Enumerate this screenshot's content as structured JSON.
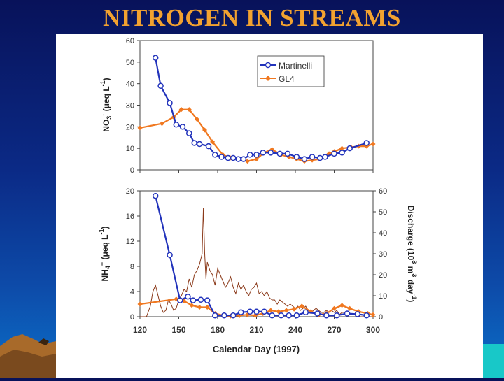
{
  "title": "NITROGEN IN STREAMS",
  "colors": {
    "martinelli": "#2233bb",
    "gl4": "#f07820",
    "discharge": "#8b3a1a",
    "title": "#f2a230"
  },
  "chart_data": [
    {
      "type": "line",
      "ylabel": "NO3- (μeq L-1)",
      "xlim": [
        120,
        300
      ],
      "ylim": [
        0,
        60
      ],
      "yticks": [
        "0",
        "10",
        "20",
        "30",
        "40",
        "50",
        "60"
      ],
      "legend": "top-right",
      "series": [
        {
          "name": "Martinelli",
          "x": [
            132,
            136,
            143,
            148,
            153,
            158,
            162,
            166,
            173,
            178,
            183,
            188,
            192,
            196,
            200,
            205,
            210,
            215,
            221,
            228,
            234,
            241,
            247,
            253,
            259,
            263,
            270,
            276,
            282,
            295
          ],
          "y": [
            52,
            39,
            31,
            21,
            20,
            17,
            12.5,
            12,
            11,
            7,
            6,
            5.5,
            5.5,
            5,
            5,
            7,
            7,
            8,
            8,
            7.5,
            7.5,
            6,
            5,
            6,
            5.5,
            6,
            7.5,
            8,
            10,
            12.5
          ]
        },
        {
          "name": "GL4",
          "x": [
            120,
            137,
            146,
            152,
            158,
            164,
            170,
            176,
            184,
            190,
            196,
            203,
            210,
            216,
            222,
            229,
            235,
            241,
            247,
            253,
            259,
            266,
            270,
            276,
            283,
            289,
            295,
            300
          ],
          "y": [
            19.5,
            21.5,
            24.5,
            28,
            28,
            23.5,
            18.5,
            13,
            7,
            5.5,
            5,
            4,
            5,
            8,
            9.5,
            7,
            6,
            5,
            4,
            4.5,
            5,
            7.5,
            8.5,
            10,
            10.5,
            11,
            11,
            12
          ]
        }
      ]
    },
    {
      "type": "line",
      "xlabel": "Calendar Day (1997)",
      "ylabel": "NH4+ (μeq L-1)",
      "y2label": "Discharge (10^3 m^3 day-1)",
      "xlim": [
        120,
        300
      ],
      "ylim": [
        0,
        20
      ],
      "y2lim": [
        0,
        60
      ],
      "xticks": [
        "120",
        "150",
        "180",
        "210",
        "240",
        "270",
        "300"
      ],
      "yticks": [
        "0",
        "4",
        "8",
        "12",
        "16",
        "20"
      ],
      "y2ticks": [
        "0",
        "10",
        "20",
        "30",
        "40",
        "50",
        "60"
      ],
      "series": [
        {
          "name": "Martinelli",
          "x": [
            132,
            143,
            151,
            157,
            161,
            167,
            172,
            178,
            185,
            192,
            198,
            205,
            210,
            216,
            222,
            229,
            235,
            241,
            248,
            257,
            264,
            272,
            280,
            288,
            295
          ],
          "y": [
            19.2,
            9.8,
            2.6,
            3.2,
            2.6,
            2.7,
            2.6,
            0.2,
            0.2,
            0.2,
            0.7,
            0.8,
            0.8,
            0.8,
            0.2,
            0.2,
            0.2,
            0.2,
            0.7,
            0.5,
            0.2,
            0.2,
            0.5,
            0.4,
            0.2
          ]
        },
        {
          "name": "GL4",
          "x": [
            120,
            148,
            154,
            160,
            166,
            172,
            178,
            184,
            190,
            197,
            203,
            209,
            215,
            221,
            227,
            233,
            239,
            245,
            252,
            258,
            264,
            270,
            276,
            282,
            289,
            296,
            300
          ],
          "y": [
            2,
            2.8,
            2.5,
            1.8,
            1.5,
            1.5,
            0.5,
            0.2,
            0.1,
            0.2,
            0.3,
            0.2,
            0.5,
            1,
            0.8,
            1,
            1.2,
            1.7,
            0.8,
            0.3,
            0.5,
            1.3,
            1.8,
            1.3,
            0.8,
            0.5,
            0.3
          ]
        },
        {
          "name": "Discharge",
          "axis": "right",
          "x": [
            120,
            125,
            128,
            130,
            132,
            134,
            136,
            138,
            140,
            142,
            144,
            146,
            148,
            150,
            152,
            154,
            156,
            158,
            160,
            162,
            164,
            166,
            168,
            169,
            170,
            171,
            172,
            174,
            176,
            178,
            180,
            182,
            184,
            186,
            188,
            190,
            192,
            194,
            196,
            198,
            200,
            202,
            204,
            206,
            208,
            210,
            212,
            214,
            216,
            218,
            220,
            222,
            224,
            226,
            228,
            230,
            232,
            234,
            236,
            238,
            240,
            242,
            244,
            246,
            248,
            250,
            252,
            254,
            256,
            258,
            260,
            262,
            264,
            266,
            268,
            270,
            272,
            274,
            276,
            278,
            280,
            282,
            284,
            286,
            288,
            290,
            295,
            300
          ],
          "y": [
            0,
            0,
            5,
            12,
            15,
            10,
            5,
            2,
            3,
            8,
            6,
            3,
            4,
            8,
            10,
            13,
            12,
            18,
            14,
            20,
            22,
            25,
            30,
            52,
            30,
            18,
            26,
            22,
            20,
            15,
            23,
            20,
            17,
            14,
            16,
            19,
            14,
            11,
            16,
            13,
            15,
            12,
            10,
            13,
            14,
            16,
            11,
            12,
            10,
            12,
            9,
            8,
            8,
            6,
            8,
            7,
            6,
            5,
            6,
            5,
            4,
            5,
            3,
            4,
            5,
            3,
            2,
            3,
            4,
            3,
            2,
            2,
            3,
            2,
            3,
            2,
            3,
            1,
            2,
            2,
            1.5,
            1,
            1,
            1,
            0.5,
            0,
            0,
            0
          ]
        }
      ]
    }
  ]
}
